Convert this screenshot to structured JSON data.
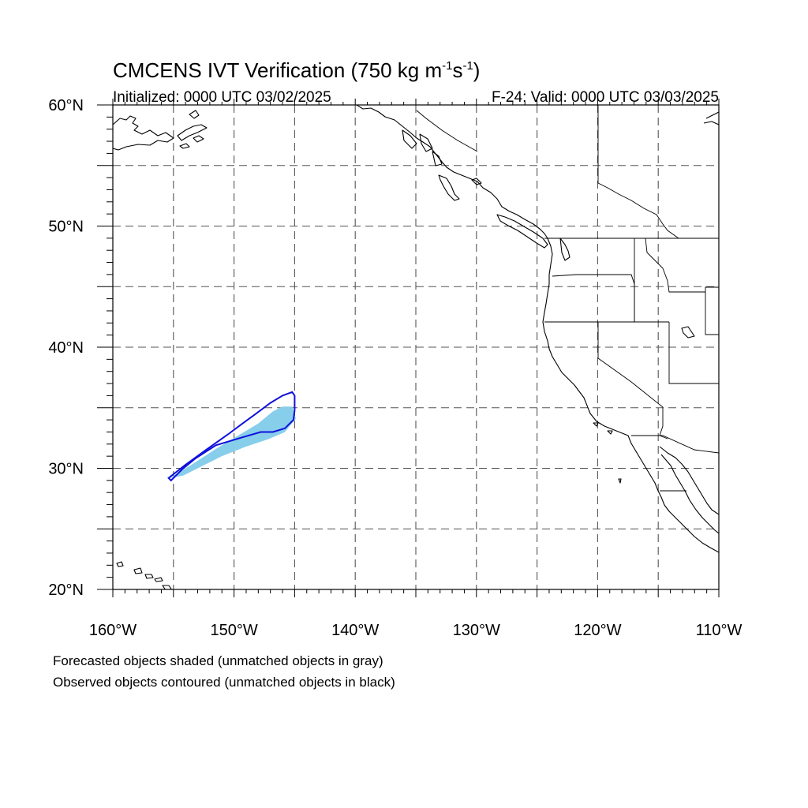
{
  "title_main": "CMCENS IVT Verification (750 kg m",
  "title_exp1": "-1",
  "title_mid": "s",
  "title_exp2": "-1",
  "title_end": ")",
  "initialized": "Initialized: 0000 UTC 03/02/2025",
  "valid": "F-24: Valid: 0000 UTC 03/03/2025",
  "chart_data": {
    "type": "map",
    "projection": "cylindrical equidistant",
    "xlim": [
      -160,
      -110
    ],
    "ylim": [
      20,
      60
    ],
    "x_tick_labels": [
      "160°W",
      "150°W",
      "140°W",
      "130°W",
      "120°W",
      "110°W"
    ],
    "y_tick_labels": [
      "60°N",
      "50°N",
      "40°N",
      "30°N",
      "20°N"
    ],
    "gridlines": "dashed every 5°",
    "forecast_object": {
      "style": "shaded",
      "color": "#87ceeb",
      "polygon_lonlat": [
        [
          -155.3,
          29.2
        ],
        [
          -153.5,
          30.3
        ],
        [
          -151.5,
          31.6
        ],
        [
          -149.5,
          32.8
        ],
        [
          -148,
          33.7
        ],
        [
          -146.8,
          34.7
        ],
        [
          -146,
          35.1
        ],
        [
          -145.2,
          35.1
        ],
        [
          -144.9,
          34.1
        ],
        [
          -145.8,
          33.0
        ],
        [
          -147.2,
          32.4
        ],
        [
          -149,
          31.8
        ],
        [
          -151,
          31.0
        ],
        [
          -152.8,
          30.1
        ],
        [
          -154.2,
          29.4
        ]
      ]
    },
    "observed_object": {
      "style": "contour",
      "color": "#1010dd",
      "polygon_lonlat": [
        [
          -155.4,
          29.2
        ],
        [
          -154,
          30.3
        ],
        [
          -152.2,
          31.6
        ],
        [
          -150.5,
          32.8
        ],
        [
          -149.3,
          33.7
        ],
        [
          -148.2,
          34.5
        ],
        [
          -147,
          35.4
        ],
        [
          -146,
          36.0
        ],
        [
          -145.2,
          36.3
        ],
        [
          -145,
          36.0
        ],
        [
          -145,
          34.8
        ],
        [
          -145.1,
          34.0
        ],
        [
          -145.8,
          33.3
        ],
        [
          -146.8,
          33.0
        ],
        [
          -147.8,
          33.0
        ],
        [
          -149.5,
          32.5
        ],
        [
          -151.5,
          31.9
        ],
        [
          -153.2,
          30.8
        ],
        [
          -154.3,
          29.9
        ],
        [
          -155.2,
          29.0
        ]
      ]
    }
  },
  "footnote1": "Forecasted objects shaded (unmatched objects in gray)",
  "footnote2": "Observed objects contoured (unmatched objects in black)"
}
